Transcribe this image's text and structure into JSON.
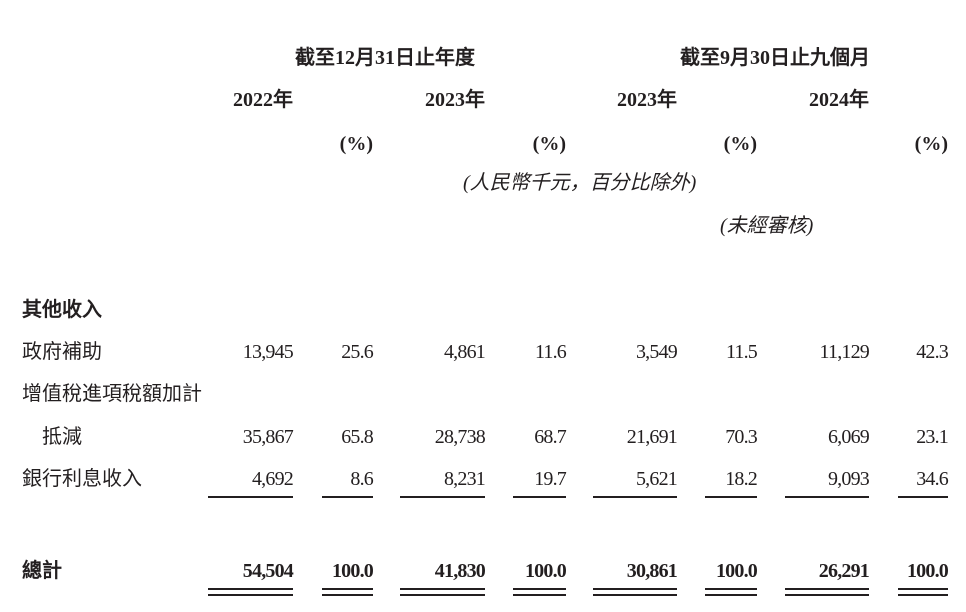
{
  "header": {
    "group1": "截至12月31日止年度",
    "group2": "截至9月30日止九個月",
    "years": [
      "2022年",
      "2023年",
      "2023年",
      "2024年"
    ],
    "pct": "(%)",
    "unit_note": "(人民幣千元，百分比除外)",
    "unaudited": "(未經審核)"
  },
  "section_title": "其他收入",
  "rows": [
    {
      "label": "政府補助",
      "values": [
        "13,945",
        "25.6",
        "4,861",
        "11.6",
        "3,549",
        "11.5",
        "11,129",
        "42.3"
      ]
    },
    {
      "label": "增值稅進項稅額加計",
      "label2": "抵減",
      "values": [
        "35,867",
        "65.8",
        "28,738",
        "68.7",
        "21,691",
        "70.3",
        "6,069",
        "23.1"
      ]
    },
    {
      "label": "銀行利息收入",
      "values": [
        "4,692",
        "8.6",
        "8,231",
        "19.7",
        "5,621",
        "18.2",
        "9,093",
        "34.6"
      ]
    }
  ],
  "total": {
    "label": "總計",
    "values": [
      "54,504",
      "100.0",
      "41,830",
      "100.0",
      "30,861",
      "100.0",
      "26,291",
      "100.0"
    ]
  }
}
